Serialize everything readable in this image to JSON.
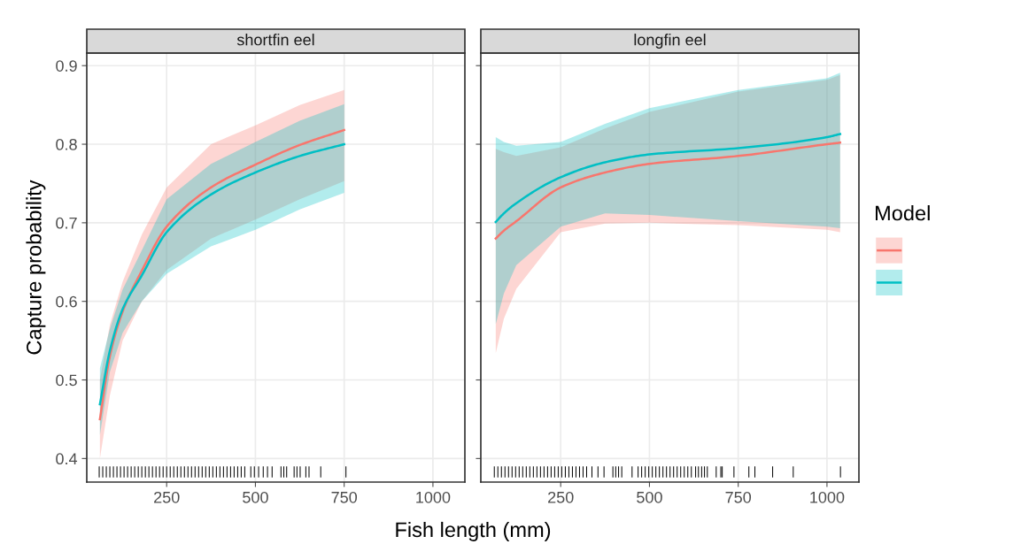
{
  "chart_data": [
    {
      "type": "line",
      "title": "shortfin eel",
      "xlabel": "Fish length (mm)",
      "ylabel": "Capture probability",
      "xlim": [
        25,
        1090
      ],
      "ylim": [
        0.37,
        0.916
      ],
      "xticks": [
        250,
        500,
        750,
        1000
      ],
      "yticks": [
        0.4,
        0.5,
        0.6,
        0.7,
        0.8,
        0.9
      ],
      "grid": true,
      "series": [
        {
          "color": "#f8766d",
          "x": [
            62,
            90,
            126,
            180,
            250,
            375,
            500,
            625,
            750
          ],
          "values": [
            0.45,
            0.53,
            0.587,
            0.639,
            0.695,
            0.745,
            0.774,
            0.799,
            0.818
          ],
          "lower": [
            0.4,
            0.48,
            0.55,
            0.6,
            0.64,
            0.68,
            0.704,
            0.73,
            0.753
          ],
          "upper": [
            0.5,
            0.57,
            0.625,
            0.685,
            0.745,
            0.8,
            0.824,
            0.85,
            0.869
          ]
        },
        {
          "color": "#00bfc4",
          "x": [
            62,
            90,
            126,
            180,
            250,
            375,
            500,
            625,
            750
          ],
          "values": [
            0.469,
            0.537,
            0.59,
            0.633,
            0.688,
            0.736,
            0.764,
            0.785,
            0.8
          ],
          "lower": [
            0.43,
            0.51,
            0.56,
            0.6,
            0.635,
            0.67,
            0.691,
            0.717,
            0.738
          ],
          "upper": [
            0.515,
            0.565,
            0.615,
            0.665,
            0.73,
            0.775,
            0.803,
            0.83,
            0.851
          ]
        },
        {
          "type": "bar",
          "color": "#000000",
          "base": [
            0.376,
            0.376,
            0.376,
            0.376,
            0.376,
            0.376,
            0.376,
            0.376,
            0.376,
            0.376,
            0.376,
            0.376,
            0.376,
            0.376,
            0.376,
            0.376,
            0.376,
            0.376,
            0.376,
            0.376,
            0.376,
            0.376,
            0.376,
            0.376,
            0.376,
            0.376,
            0.376,
            0.376,
            0.376,
            0.376,
            0.376,
            0.376,
            0.376,
            0.376,
            0.376,
            0.376,
            0.376,
            0.376,
            0.376,
            0.376,
            0.376,
            0.376,
            0.376,
            0.376,
            0.376,
            0.376,
            0.376,
            0.376,
            0.376,
            0.376,
            0.376,
            0.376,
            0.376,
            0.376,
            0.376,
            0.376,
            0.376,
            0.376
          ],
          "x": [
            60,
            70,
            80,
            90,
            100,
            110,
            120,
            130,
            140,
            150,
            160,
            170,
            180,
            190,
            200,
            210,
            220,
            230,
            240,
            250,
            260,
            270,
            280,
            290,
            300,
            310,
            320,
            330,
            340,
            350,
            360,
            370,
            380,
            390,
            400,
            410,
            420,
            430,
            440,
            450,
            460,
            470,
            487,
            497,
            509,
            522,
            534,
            547,
            572,
            580,
            588,
            609,
            617,
            626,
            642,
            651,
            684,
            755
          ],
          "values": [
            0.014,
            0.014,
            0.014,
            0.014,
            0.014,
            0.014,
            0.014,
            0.014,
            0.014,
            0.014,
            0.014,
            0.014,
            0.014,
            0.014,
            0.014,
            0.014,
            0.014,
            0.014,
            0.014,
            0.014,
            0.014,
            0.014,
            0.014,
            0.014,
            0.014,
            0.014,
            0.014,
            0.014,
            0.014,
            0.014,
            0.014,
            0.014,
            0.014,
            0.014,
            0.014,
            0.014,
            0.014,
            0.014,
            0.014,
            0.014,
            0.014,
            0.014,
            0.014,
            0.014,
            0.014,
            0.014,
            0.014,
            0.014,
            0.014,
            0.014,
            0.014,
            0.014,
            0.014,
            0.014,
            0.014,
            0.014,
            0.014,
            0.014
          ]
        }
      ]
    },
    {
      "type": "line",
      "title": "longfin eel",
      "legend_title": "Model",
      "xlim": [
        25,
        1090
      ],
      "ylim": [
        0.37,
        0.916
      ],
      "xticks": [
        250,
        500,
        750,
        1000
      ],
      "yticks": [
        0.4,
        0.5,
        0.6,
        0.7,
        0.8,
        0.9
      ],
      "grid": true,
      "tick_labels": "x",
      "series": [
        {
          "color": "#f8766d",
          "x": [
            67,
            90,
            125,
            250,
            375,
            500,
            750,
            1000,
            1037
          ],
          "values": [
            0.68,
            0.69,
            0.702,
            0.745,
            0.764,
            0.775,
            0.785,
            0.8,
            0.802
          ],
          "lower": [
            0.534,
            0.578,
            0.616,
            0.688,
            0.699,
            0.7,
            0.697,
            0.691,
            0.688
          ],
          "upper": [
            0.794,
            0.79,
            0.785,
            0.796,
            0.82,
            0.841,
            0.867,
            0.882,
            0.888
          ]
        },
        {
          "color": "#00bfc4",
          "x": [
            67,
            90,
            125,
            250,
            375,
            500,
            750,
            1000,
            1037
          ],
          "values": [
            0.701,
            0.712,
            0.725,
            0.758,
            0.777,
            0.787,
            0.795,
            0.809,
            0.813
          ],
          "lower": [
            0.571,
            0.61,
            0.646,
            0.695,
            0.712,
            0.71,
            0.702,
            0.695,
            0.693
          ],
          "upper": [
            0.809,
            0.803,
            0.798,
            0.803,
            0.826,
            0.846,
            0.869,
            0.884,
            0.891
          ]
        },
        {
          "type": "bar",
          "color": "#000000",
          "base": [
            0.376,
            0.376,
            0.376,
            0.376,
            0.376,
            0.376,
            0.376,
            0.376,
            0.376,
            0.376,
            0.376,
            0.376,
            0.376,
            0.376,
            0.376,
            0.376,
            0.376,
            0.376,
            0.376,
            0.376,
            0.376,
            0.376,
            0.376,
            0.376,
            0.376,
            0.376,
            0.376,
            0.376,
            0.376,
            0.376,
            0.376,
            0.376,
            0.376,
            0.376,
            0.376,
            0.376,
            0.376,
            0.376,
            0.376,
            0.376,
            0.376,
            0.376,
            0.376,
            0.376,
            0.376,
            0.376,
            0.376,
            0.376,
            0.376,
            0.376,
            0.376,
            0.376,
            0.376,
            0.376,
            0.376,
            0.376,
            0.376,
            0.376,
            0.376,
            0.376,
            0.376,
            0.376,
            0.376,
            0.376,
            0.376
          ],
          "x": [
            63,
            73,
            83,
            93,
            103,
            113,
            123,
            133,
            143,
            153,
            163,
            173,
            183,
            193,
            203,
            213,
            223,
            233,
            243,
            253,
            263,
            273,
            283,
            293,
            303,
            313,
            323,
            338,
            355,
            372,
            397,
            405,
            413,
            422,
            451,
            468,
            478,
            488,
            498,
            508,
            518,
            528,
            538,
            548,
            558,
            568,
            578,
            588,
            598,
            608,
            618,
            630,
            638,
            647,
            655,
            663,
            688,
            701,
            705,
            738,
            780,
            797,
            847,
            905,
            1038
          ],
          "values": [
            0.014,
            0.014,
            0.014,
            0.014,
            0.014,
            0.014,
            0.014,
            0.014,
            0.014,
            0.014,
            0.014,
            0.014,
            0.014,
            0.014,
            0.014,
            0.014,
            0.014,
            0.014,
            0.014,
            0.014,
            0.014,
            0.014,
            0.014,
            0.014,
            0.014,
            0.014,
            0.014,
            0.014,
            0.014,
            0.014,
            0.014,
            0.014,
            0.014,
            0.014,
            0.014,
            0.014,
            0.014,
            0.014,
            0.014,
            0.014,
            0.014,
            0.014,
            0.014,
            0.014,
            0.014,
            0.014,
            0.014,
            0.014,
            0.014,
            0.014,
            0.014,
            0.014,
            0.014,
            0.014,
            0.014,
            0.014,
            0.014,
            0.014,
            0.014,
            0.014,
            0.014,
            0.014,
            0.014,
            0.014,
            0.014
          ]
        }
      ]
    }
  ]
}
